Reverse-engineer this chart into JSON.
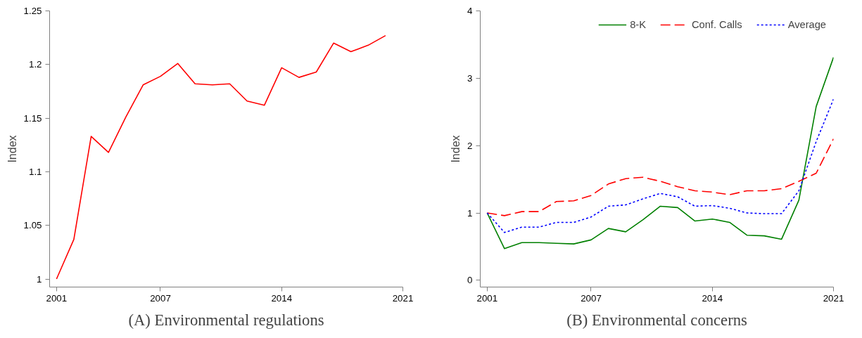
{
  "chart_data": [
    {
      "type": "line",
      "title": "(A) Environmental regulations",
      "ylabel": "Index",
      "x": [
        2001,
        2002,
        2003,
        2004,
        2005,
        2006,
        2007,
        2008,
        2009,
        2010,
        2011,
        2012,
        2013,
        2014,
        2015,
        2016,
        2017,
        2018,
        2019,
        2020
      ],
      "series": [
        {
          "color": "#ff0000",
          "values": [
            1.0,
            1.037,
            1.133,
            1.118,
            1.151,
            1.181,
            1.189,
            1.201,
            1.182,
            1.181,
            1.182,
            1.166,
            1.162,
            1.197,
            1.188,
            1.193,
            1.22,
            1.212,
            1.218,
            1.227
          ]
        }
      ],
      "xlim": [
        2000.6,
        2021
      ],
      "xticks": [
        2001,
        2007,
        2014,
        2021
      ],
      "ylim": [
        0.9925,
        1.25
      ],
      "yticks": [
        1,
        1.05,
        1.1,
        1.15,
        1.2,
        1.25
      ],
      "grid": false,
      "legend": false,
      "line_style": "solid"
    },
    {
      "type": "line",
      "title": "(B) Environmental concerns",
      "ylabel": "Index",
      "x": [
        2001,
        2002,
        2003,
        2004,
        2005,
        2006,
        2007,
        2008,
        2009,
        2010,
        2011,
        2012,
        2013,
        2014,
        2015,
        2016,
        2017,
        2018,
        2019,
        2020,
        2021
      ],
      "series": [
        {
          "name": "8-K",
          "color": "#008000",
          "line_style": "solid",
          "values": [
            1.0,
            0.47,
            0.56,
            0.56,
            0.55,
            0.54,
            0.6,
            0.77,
            0.72,
            0.9,
            1.1,
            1.08,
            0.88,
            0.91,
            0.86,
            0.67,
            0.66,
            0.61,
            1.19,
            2.58,
            3.31
          ]
        },
        {
          "name": "Conf. Calls",
          "color": "#ff0000",
          "line_style": "dashed",
          "values": [
            1.0,
            0.96,
            1.02,
            1.02,
            1.17,
            1.18,
            1.26,
            1.43,
            1.51,
            1.53,
            1.47,
            1.39,
            1.33,
            1.31,
            1.27,
            1.33,
            1.33,
            1.36,
            1.47,
            1.59,
            2.1
          ]
        },
        {
          "name": "Average",
          "color": "#0000ff",
          "line_style": "dotted",
          "values": [
            1.0,
            0.71,
            0.79,
            0.79,
            0.86,
            0.86,
            0.94,
            1.1,
            1.12,
            1.21,
            1.29,
            1.24,
            1.1,
            1.11,
            1.07,
            1.0,
            0.99,
            0.99,
            1.33,
            2.06,
            2.69
          ]
        }
      ],
      "xlim": [
        2000.6,
        2021
      ],
      "xticks": [
        2001,
        2007,
        2014,
        2021
      ],
      "ylim": [
        -0.1,
        4
      ],
      "yticks": [
        0,
        1,
        2,
        3,
        4
      ],
      "grid": false,
      "legend": "top right"
    }
  ]
}
